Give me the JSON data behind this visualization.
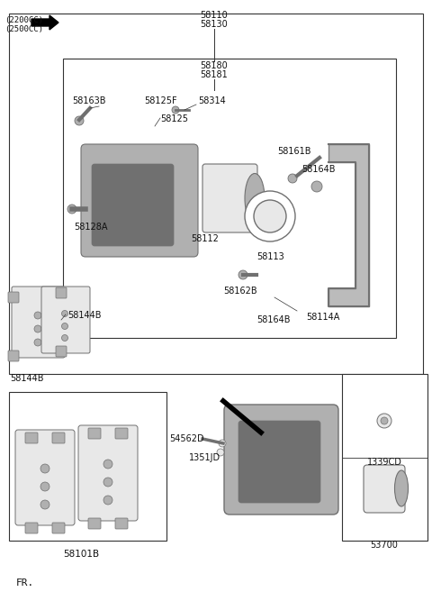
{
  "bg_color": "#ffffff",
  "border_color": "#333333",
  "text_color": "#111111",
  "title_top_left": "(2200CC)\n(2500CC)",
  "label_58110": "58110",
  "label_58130": "58130",
  "label_58180": "58180",
  "label_58181": "58181",
  "label_58163B": "58163B",
  "label_58125F": "58125F",
  "label_58314": "58314",
  "label_58125": "58125",
  "label_58128A": "58128A",
  "label_58161B": "58161B",
  "label_58164B_top": "58164B",
  "label_58112": "58112",
  "label_58113": "58113",
  "label_58114A": "58114A",
  "label_58144B_top": "58144B",
  "label_58144B_bot": "58144B",
  "label_58162B": "58162B",
  "label_58164B_bot": "58164B",
  "label_58101B": "58101B",
  "label_54562D": "54562D",
  "label_1351JD": "1351JD",
  "label_53700": "53700",
  "label_1339CD": "1339CD",
  "label_FR": "FR.",
  "gray_light": "#e8e8e8",
  "gray_mid": "#b0b0b0",
  "gray_dark": "#707070",
  "line_color": "#333333"
}
